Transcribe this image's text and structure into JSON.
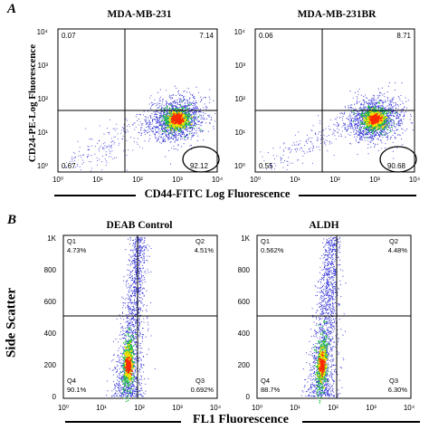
{
  "figure": {
    "panel_a": {
      "letter": "A",
      "ylabel": "CD24-PE-Log Fluorescence",
      "xlabel": "CD44-FITC Log Fluorescence",
      "x_ticks": [
        "10⁰",
        "10¹",
        "10²",
        "10³",
        "10⁴"
      ],
      "y_ticks": [
        "10⁰",
        "10¹",
        "10²",
        "10³",
        "10⁴"
      ],
      "plots": [
        {
          "title": "MDA-MB-231",
          "q_ul": "0.07",
          "q_ur": "7.14",
          "q_ll": "0.67",
          "q_lr": "92.12"
        },
        {
          "title": "MDA-MB-231BR",
          "q_ul": "0.06",
          "q_ur": "8.71",
          "q_ll": "0.55",
          "q_lr": "90.68"
        }
      ]
    },
    "panel_b": {
      "letter": "B",
      "ylabel": "Side Scatter",
      "xlabel": "FL1 Fluorescence",
      "x_ticks": [
        "10⁰",
        "10¹",
        "10²",
        "10³",
        "10⁴"
      ],
      "y_ticks": [
        "1K",
        "800",
        "600",
        "400",
        "200",
        "0"
      ],
      "plots": [
        {
          "title": "DEAB Control",
          "q1": "Q1",
          "q1v": "4.73%",
          "q2": "Q2",
          "q2v": "4.51%",
          "q3": "Q3",
          "q3v": "0.692%",
          "q4": "Q4",
          "q4v": "90.1%"
        },
        {
          "title": "ALDH",
          "q1": "Q1",
          "q1v": "0.562%",
          "q2": "Q2",
          "q2v": "4.48%",
          "q3": "Q3",
          "q3v": "6.30%",
          "q4": "Q4",
          "q4v": "88.7%"
        }
      ]
    },
    "colors": {
      "dots": "#2b2bd6",
      "dense_core": "#ff2a00",
      "mid": "#ffe000",
      "outer": "#20c040"
    }
  }
}
